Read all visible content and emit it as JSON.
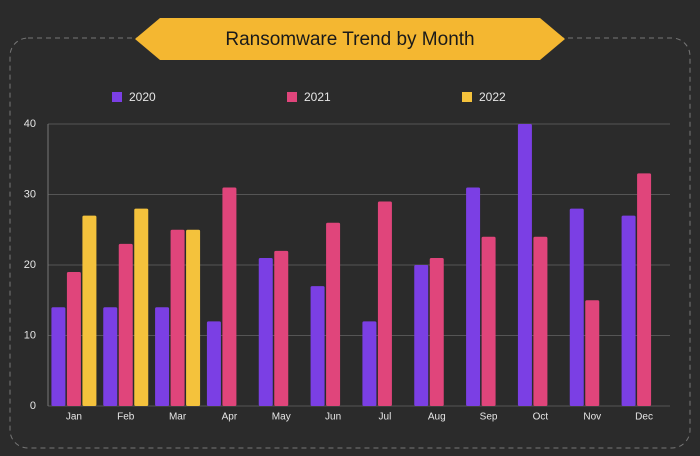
{
  "chart_data": {
    "type": "bar",
    "title": "Ransomware Trend by Month",
    "categories": [
      "Jan",
      "Feb",
      "Mar",
      "Apr",
      "May",
      "Jun",
      "Jul",
      "Aug",
      "Sep",
      "Oct",
      "Nov",
      "Dec"
    ],
    "series": [
      {
        "name": "2020",
        "color": "#7b3fe4",
        "values": [
          14,
          14,
          14,
          12,
          21,
          17,
          12,
          20,
          31,
          40,
          28,
          27
        ]
      },
      {
        "name": "2021",
        "color": "#e0457b",
        "values": [
          19,
          23,
          25,
          31,
          22,
          26,
          29,
          21,
          24,
          24,
          15,
          33
        ]
      },
      {
        "name": "2022",
        "color": "#f4c23c",
        "values": [
          27,
          28,
          25,
          null,
          null,
          null,
          null,
          null,
          null,
          null,
          null,
          null
        ]
      }
    ],
    "ylim": [
      0,
      40
    ],
    "yticks": [
      0,
      10,
      20,
      30,
      40
    ],
    "grid": true,
    "legend": "top"
  }
}
